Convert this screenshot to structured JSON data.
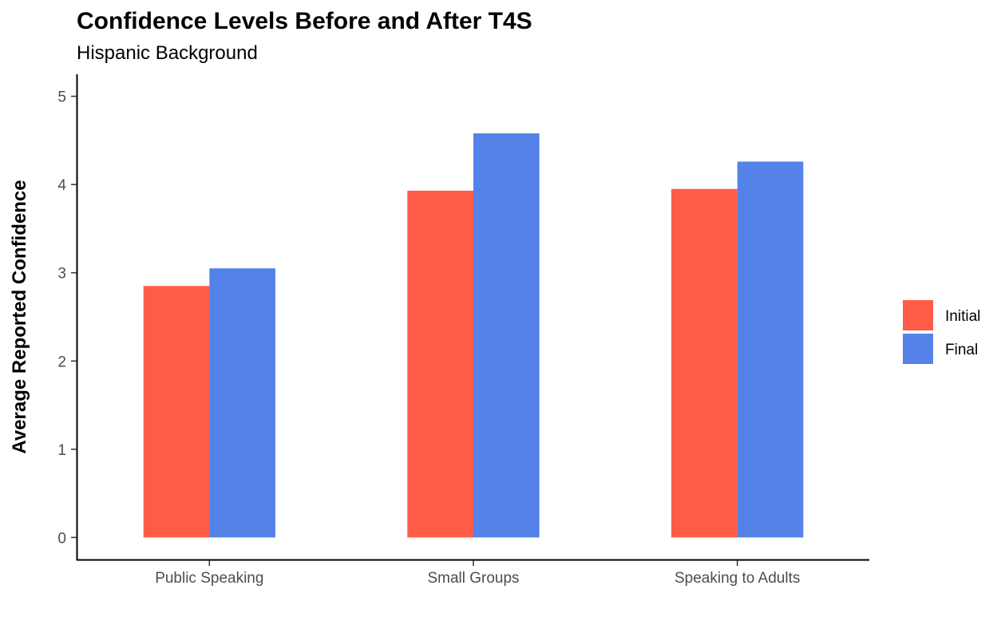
{
  "chart_data": {
    "type": "bar",
    "title": "Confidence Levels Before and After T4S",
    "subtitle": "Hispanic Background",
    "xlabel": "",
    "ylabel": "Average Reported Confidence",
    "categories": [
      "Public Speaking",
      "Small Groups",
      "Speaking to Adults"
    ],
    "series": [
      {
        "name": "Initial",
        "color": "#FF5C48",
        "values": [
          2.85,
          3.93,
          3.95
        ]
      },
      {
        "name": "Final",
        "color": "#5482E8",
        "values": [
          3.05,
          4.58,
          4.26
        ]
      }
    ],
    "yticks": [
      0,
      1,
      2,
      3,
      4,
      5
    ],
    "ylim": [
      -0.25,
      5.25
    ],
    "grid": false,
    "legend_position": "right"
  }
}
